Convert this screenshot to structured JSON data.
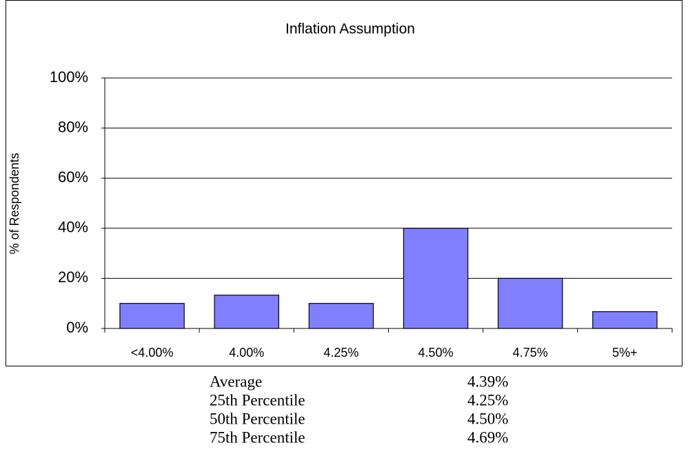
{
  "chart_data": {
    "type": "bar",
    "title": "Inflation Assumption",
    "y_label": "% of Respondents",
    "categories": [
      "<4.00%",
      "4.00%",
      "4.25%",
      "4.50%",
      "4.75%",
      "5%+"
    ],
    "values": [
      10,
      13.3,
      10,
      40,
      20,
      6.7
    ],
    "color": "#8080ff",
    "ylim": [
      0,
      100
    ],
    "yticks": [
      {
        "value": 0,
        "label": "0%"
      },
      {
        "value": 20,
        "label": "20%"
      },
      {
        "value": 40,
        "label": "40%"
      },
      {
        "value": 60,
        "label": "60%"
      },
      {
        "value": 80,
        "label": "80%"
      },
      {
        "value": 100,
        "label": "100%"
      }
    ],
    "grid": true
  },
  "stats": {
    "rows": [
      [
        "Average",
        "4.39%"
      ],
      [
        "25th Percentile",
        "4.25%"
      ],
      [
        "50th Percentile",
        "4.50%"
      ],
      [
        "75th Percentile",
        "4.69%"
      ]
    ]
  }
}
